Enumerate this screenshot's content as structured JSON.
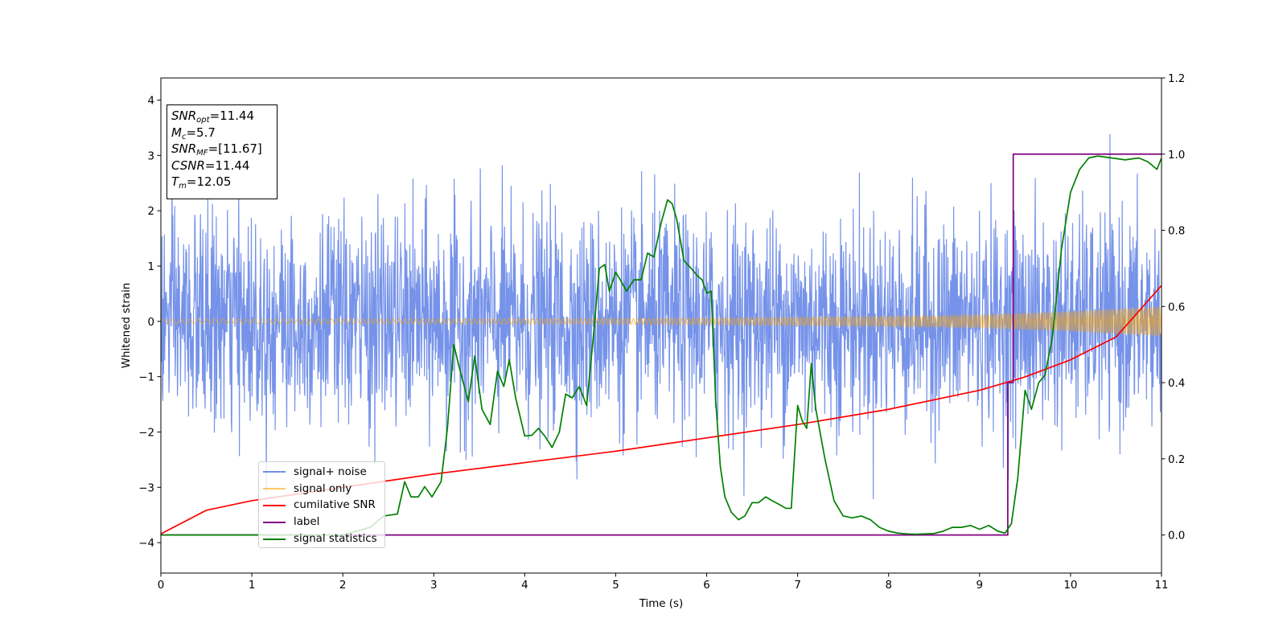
{
  "chart_data": {
    "type": "line",
    "title": "",
    "xlabel": "Time (s)",
    "ylabel": "Whitened strain",
    "ylabel_right": "",
    "xlim": [
      0,
      11
    ],
    "ylim": [
      -4.55,
      4.4
    ],
    "ylim_right": [
      -0.1,
      1.2
    ],
    "x_ticks": [
      0,
      1,
      2,
      3,
      4,
      5,
      6,
      7,
      8,
      9,
      10,
      11
    ],
    "y_ticks": [
      -4,
      -3,
      -2,
      -1,
      0,
      1,
      2,
      3,
      4
    ],
    "y_ticks_right": [
      "0.0",
      "0.2",
      "0.4",
      "0.6",
      "0.8",
      "1.0",
      "1.2"
    ],
    "grid": false,
    "legend_location": "lower-left",
    "annotation": {
      "snr_opt": {
        "symbol": "SNR",
        "sub": "opt",
        "value": "=11.44"
      },
      "mc": {
        "symbol": "M",
        "sub": "c",
        "value": "=5.7"
      },
      "snr_mf": {
        "symbol": "SNR",
        "sub": "MF",
        "value": "=[11.67]"
      },
      "csnr": {
        "symbol": "CSNR",
        "value": "=11.44"
      },
      "tm": {
        "symbol": "T",
        "sub": "m",
        "value": "=12.05"
      }
    },
    "series": [
      {
        "name": "signal+ noise",
        "color": "#4169e1",
        "axis": "left",
        "description_values": {
          "noise_sigma": 0.95,
          "max": 4.0,
          "min": -4.15
        }
      },
      {
        "name": "signal only",
        "color": "#ffa500",
        "axis": "left",
        "envelope_x": [
          0,
          2,
          4,
          6,
          8,
          9,
          10,
          11
        ],
        "envelope_amp": [
          0.04,
          0.045,
          0.05,
          0.06,
          0.09,
          0.12,
          0.18,
          0.27
        ]
      },
      {
        "name": "cumilative SNR",
        "color": "#ff0000",
        "axis": "right",
        "x": [
          0,
          0.5,
          1,
          2,
          3,
          4,
          5,
          6,
          7,
          8,
          9,
          9.5,
          10,
          10.5,
          11
        ],
        "y": [
          0.003,
          0.065,
          0.09,
          0.125,
          0.16,
          0.19,
          0.22,
          0.255,
          0.29,
          0.33,
          0.38,
          0.415,
          0.46,
          0.52,
          0.655
        ]
      },
      {
        "name": "label",
        "color": "#800080",
        "axis": "right",
        "x": [
          0,
          9.31,
          9.31,
          9.37,
          9.37,
          11
        ],
        "y": [
          0,
          0,
          0.4,
          0.4,
          1.0,
          1.0
        ]
      },
      {
        "name": "signal statistics",
        "color": "#008000",
        "axis": "right",
        "x": [
          0,
          2.0,
          2.3,
          2.45,
          2.6,
          2.68,
          2.75,
          2.83,
          2.9,
          2.98,
          3.08,
          3.15,
          3.22,
          3.28,
          3.38,
          3.45,
          3.53,
          3.62,
          3.7,
          3.77,
          3.83,
          3.9,
          4.0,
          4.08,
          4.15,
          4.22,
          4.3,
          4.38,
          4.45,
          4.52,
          4.6,
          4.68,
          4.75,
          4.82,
          4.88,
          4.93,
          5.0,
          5.05,
          5.12,
          5.2,
          5.28,
          5.35,
          5.42,
          5.5,
          5.57,
          5.62,
          5.67,
          5.75,
          5.83,
          5.9,
          5.95,
          6.0,
          6.05,
          6.1,
          6.15,
          6.2,
          6.27,
          6.35,
          6.42,
          6.5,
          6.57,
          6.65,
          6.72,
          6.8,
          6.87,
          6.93,
          7.0,
          7.05,
          7.1,
          7.15,
          7.2,
          7.3,
          7.4,
          7.5,
          7.6,
          7.7,
          7.8,
          7.9,
          8.0,
          8.1,
          8.2,
          8.3,
          8.4,
          8.5,
          8.6,
          8.7,
          8.8,
          8.9,
          9.0,
          9.1,
          9.2,
          9.28,
          9.35,
          9.42,
          9.5,
          9.57,
          9.65,
          9.72,
          9.8,
          9.9,
          10.0,
          10.1,
          10.2,
          10.3,
          10.45,
          10.6,
          10.75,
          10.85,
          10.95,
          11
        ],
        "y": [
          0.0,
          0.0,
          0.02,
          0.05,
          0.055,
          0.14,
          0.1,
          0.1,
          0.127,
          0.1,
          0.14,
          0.28,
          0.5,
          0.44,
          0.35,
          0.47,
          0.33,
          0.29,
          0.43,
          0.39,
          0.46,
          0.36,
          0.26,
          0.262,
          0.28,
          0.26,
          0.23,
          0.27,
          0.37,
          0.36,
          0.39,
          0.34,
          0.51,
          0.7,
          0.71,
          0.64,
          0.69,
          0.67,
          0.64,
          0.67,
          0.67,
          0.74,
          0.73,
          0.82,
          0.88,
          0.87,
          0.83,
          0.72,
          0.7,
          0.68,
          0.67,
          0.635,
          0.64,
          0.35,
          0.18,
          0.1,
          0.06,
          0.04,
          0.05,
          0.085,
          0.085,
          0.1,
          0.09,
          0.08,
          0.07,
          0.07,
          0.34,
          0.3,
          0.28,
          0.45,
          0.33,
          0.2,
          0.09,
          0.05,
          0.045,
          0.05,
          0.04,
          0.02,
          0.01,
          0.005,
          0.003,
          0.002,
          0.003,
          0.004,
          0.01,
          0.02,
          0.02,
          0.025,
          0.015,
          0.025,
          0.01,
          0.005,
          0.03,
          0.15,
          0.38,
          0.33,
          0.4,
          0.42,
          0.52,
          0.75,
          0.9,
          0.96,
          0.99,
          0.995,
          0.99,
          0.985,
          0.99,
          0.98,
          0.96,
          0.99
        ]
      }
    ]
  }
}
